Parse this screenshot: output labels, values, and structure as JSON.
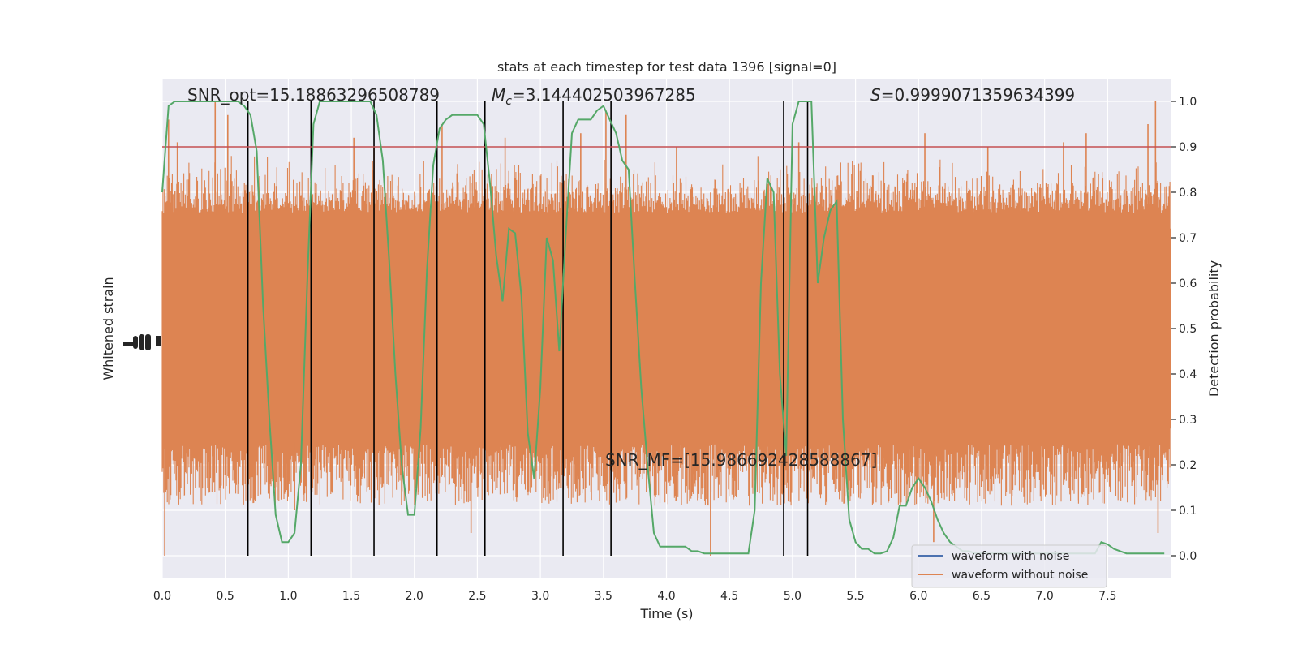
{
  "chart_data": {
    "type": "line",
    "title": "stats at each timestep for test data 1396 [signal=0]",
    "xlabel": "Time (s)",
    "ylabel_left": "Whitened strain",
    "ylabel_right": "Detection probability",
    "xlim": [
      0,
      8
    ],
    "ylim_right": [
      -0.05,
      1.05
    ],
    "x_ticks": [
      "0.0",
      "0.5",
      "1.0",
      "1.5",
      "2.0",
      "2.5",
      "3.0",
      "3.5",
      "4.0",
      "4.5",
      "5.0",
      "5.5",
      "6.0",
      "6.5",
      "7.0",
      "7.5"
    ],
    "y_right_ticks": [
      "0.0",
      "0.1",
      "0.2",
      "0.3",
      "0.4",
      "0.5",
      "0.6",
      "0.7",
      "0.8",
      "0.9",
      "1.0"
    ],
    "grid": true,
    "annotations": {
      "snr_opt": "SNR_opt=15.18863296508789",
      "mc_symbol": "M",
      "mc_sub": "c",
      "mc_value": "=3.144402503967285",
      "s_symbol": "S",
      "s_value": "=0.9999071359634399",
      "snr_mf": "SNR_MF=[15.986692428588867]"
    },
    "threshold": 0.9,
    "vertical_lines": [
      0.68,
      1.18,
      1.68,
      2.18,
      2.56,
      3.18,
      3.56,
      4.93,
      5.12
    ],
    "legend": {
      "position": "lower-right",
      "entries": [
        "waveform with noise",
        "waveform without noise"
      ]
    },
    "series": [
      {
        "name": "waveform without noise",
        "color": "#dd8452",
        "noise_band": [
          0.2,
          0.8
        ],
        "spikes": [
          [
            0.42,
            1.0
          ],
          [
            0.52,
            0.97
          ],
          [
            1.52,
            0.92
          ],
          [
            1.68,
            0.9
          ],
          [
            2.22,
            0.95
          ],
          [
            2.72,
            0.92
          ],
          [
            3.32,
            0.93
          ],
          [
            3.52,
            0.98
          ],
          [
            3.68,
            0.97
          ],
          [
            4.08,
            0.9
          ],
          [
            5.05,
            0.91
          ],
          [
            6.05,
            0.93
          ],
          [
            6.55,
            0.9
          ],
          [
            7.15,
            0.91
          ],
          [
            7.33,
            0.93
          ],
          [
            7.82,
            0.95
          ],
          [
            7.88,
            1.0
          ],
          [
            0.12,
            0.91
          ],
          [
            0.05,
            0.96
          ],
          [
            1.05,
            0.1
          ],
          [
            2.45,
            0.05
          ],
          [
            4.35,
            0.0
          ],
          [
            6.12,
            0.03
          ],
          [
            7.9,
            0.05
          ],
          [
            0.02,
            0.0
          ]
        ]
      },
      {
        "name": "detection probability",
        "color": "#55a868",
        "x": [
          0.0,
          0.05,
          0.1,
          0.15,
          0.2,
          0.25,
          0.3,
          0.35,
          0.4,
          0.45,
          0.5,
          0.55,
          0.6,
          0.65,
          0.7,
          0.75,
          0.8,
          0.85,
          0.9,
          0.95,
          1.0,
          1.05,
          1.1,
          1.15,
          1.2,
          1.25,
          1.3,
          1.35,
          1.4,
          1.45,
          1.5,
          1.55,
          1.6,
          1.65,
          1.7,
          1.75,
          1.8,
          1.85,
          1.9,
          1.95,
          2.0,
          2.05,
          2.1,
          2.15,
          2.2,
          2.25,
          2.3,
          2.35,
          2.4,
          2.45,
          2.5,
          2.55,
          2.6,
          2.65,
          2.7,
          2.75,
          2.8,
          2.85,
          2.9,
          2.95,
          3.0,
          3.05,
          3.1,
          3.15,
          3.2,
          3.25,
          3.3,
          3.35,
          3.4,
          3.45,
          3.5,
          3.55,
          3.6,
          3.65,
          3.7,
          3.75,
          3.8,
          3.85,
          3.9,
          3.95,
          4.0,
          4.05,
          4.1,
          4.15,
          4.2,
          4.25,
          4.3,
          4.35,
          4.4,
          4.45,
          4.5,
          4.55,
          4.6,
          4.65,
          4.7,
          4.75,
          4.8,
          4.85,
          4.9,
          4.95,
          5.0,
          5.05,
          5.1,
          5.15,
          5.2,
          5.25,
          5.3,
          5.35,
          5.4,
          5.45,
          5.5,
          5.55,
          5.6,
          5.65,
          5.7,
          5.75,
          5.8,
          5.85,
          5.9,
          5.95,
          6.0,
          6.05,
          6.1,
          6.15,
          6.2,
          6.25,
          6.3,
          6.35,
          6.4,
          6.45,
          6.5,
          6.55,
          6.6,
          6.65,
          6.7,
          6.75,
          6.8,
          6.85,
          6.9,
          6.95,
          7.0,
          7.05,
          7.1,
          7.15,
          7.2,
          7.25,
          7.3,
          7.35,
          7.4,
          7.45,
          7.5,
          7.55,
          7.6,
          7.65,
          7.7,
          7.75,
          7.8,
          7.85,
          7.9,
          7.95
        ],
        "y": [
          0.8,
          0.99,
          1.0,
          1.0,
          1.0,
          1.0,
          1.0,
          1.0,
          1.0,
          1.0,
          1.0,
          1.0,
          1.0,
          0.99,
          0.97,
          0.89,
          0.55,
          0.3,
          0.09,
          0.03,
          0.03,
          0.05,
          0.2,
          0.6,
          0.95,
          1.0,
          1.0,
          1.0,
          1.0,
          1.0,
          1.0,
          1.0,
          1.0,
          1.0,
          0.97,
          0.87,
          0.65,
          0.4,
          0.2,
          0.09,
          0.09,
          0.28,
          0.63,
          0.86,
          0.94,
          0.96,
          0.97,
          0.97,
          0.97,
          0.97,
          0.97,
          0.95,
          0.82,
          0.66,
          0.56,
          0.72,
          0.71,
          0.57,
          0.27,
          0.17,
          0.37,
          0.7,
          0.65,
          0.45,
          0.7,
          0.93,
          0.96,
          0.96,
          0.96,
          0.98,
          0.99,
          0.96,
          0.93,
          0.87,
          0.85,
          0.6,
          0.37,
          0.2,
          0.05,
          0.02,
          0.02,
          0.02,
          0.02,
          0.02,
          0.01,
          0.01,
          0.005,
          0.005,
          0.005,
          0.005,
          0.005,
          0.005,
          0.005,
          0.005,
          0.1,
          0.6,
          0.83,
          0.8,
          0.4,
          0.22,
          0.95,
          1.0,
          1.0,
          1.0,
          0.6,
          0.7,
          0.76,
          0.78,
          0.3,
          0.08,
          0.03,
          0.015,
          0.015,
          0.005,
          0.005,
          0.01,
          0.04,
          0.11,
          0.11,
          0.15,
          0.17,
          0.15,
          0.12,
          0.08,
          0.05,
          0.03,
          0.02,
          0.01,
          0.01,
          0.005,
          0.005,
          0.005,
          0.005,
          0.005,
          0.005,
          0.005,
          0.005,
          0.005,
          0.005,
          0.005,
          0.005,
          0.005,
          0.005,
          0.005,
          0.005,
          0.005,
          0.005,
          0.005,
          0.005,
          0.03,
          0.025,
          0.015,
          0.01,
          0.005,
          0.005,
          0.005,
          0.005,
          0.005,
          0.005,
          0.005
        ]
      }
    ],
    "colors": {
      "background": "#eaeaf2",
      "grid": "#ffffff",
      "threshold": "#c44e52",
      "vertical_line": "#000000",
      "noise_legend": "#4c72b0"
    }
  }
}
